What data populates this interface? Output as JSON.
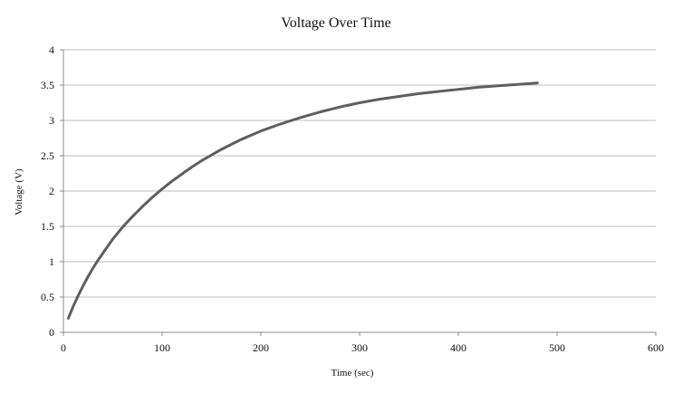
{
  "chart_data": {
    "type": "line",
    "title": "Voltage Over Time",
    "xlabel": "Time (sec)",
    "ylabel": "Voltage (V)",
    "xlim": [
      0,
      600
    ],
    "ylim": [
      0,
      4
    ],
    "x_ticks": [
      "0",
      "100",
      "200",
      "300",
      "400",
      "500",
      "600"
    ],
    "y_ticks": [
      "0",
      "0.5",
      "1",
      "1.5",
      "2",
      "2.5",
      "3",
      "3.5",
      "4"
    ],
    "grid": true,
    "legend": "none",
    "series": [
      {
        "color": "#5f5f5f",
        "x": [
          5,
          10,
          15,
          20,
          25,
          30,
          35,
          40,
          50,
          60,
          70,
          80,
          90,
          100,
          110,
          120,
          130,
          140,
          150,
          160,
          170,
          180,
          190,
          200,
          220,
          240,
          260,
          280,
          300,
          320,
          340,
          360,
          380,
          400,
          420,
          440,
          460,
          480
        ],
        "y": [
          0.2,
          0.37,
          0.52,
          0.66,
          0.79,
          0.91,
          1.02,
          1.12,
          1.32,
          1.49,
          1.64,
          1.78,
          1.91,
          2.03,
          2.14,
          2.24,
          2.34,
          2.43,
          2.51,
          2.59,
          2.66,
          2.73,
          2.79,
          2.85,
          2.95,
          3.04,
          3.12,
          3.19,
          3.25,
          3.3,
          3.34,
          3.38,
          3.41,
          3.44,
          3.47,
          3.49,
          3.51,
          3.53
        ]
      }
    ]
  }
}
